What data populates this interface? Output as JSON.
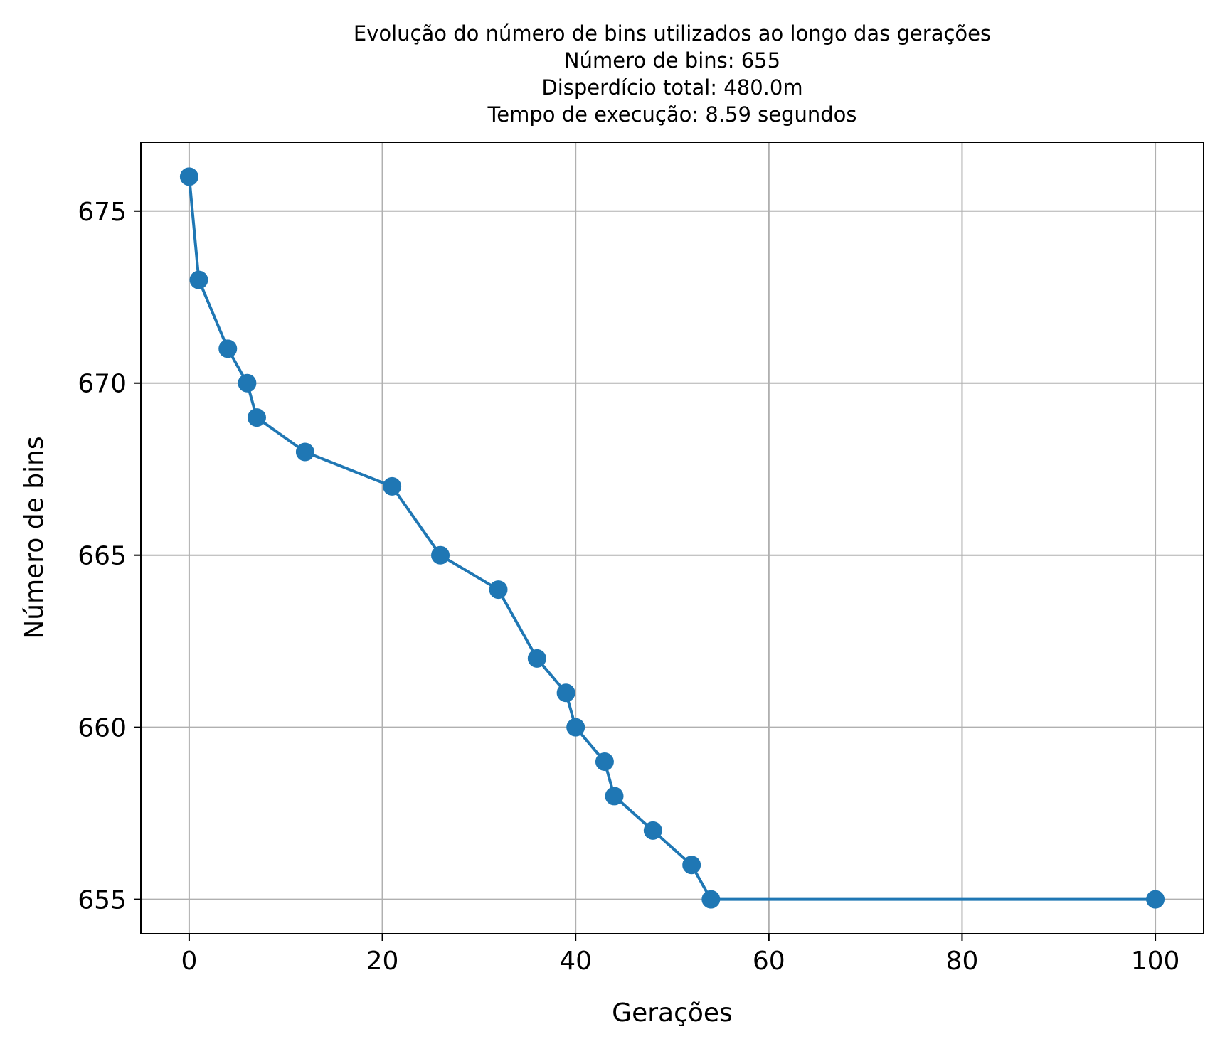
{
  "chart_data": {
    "type": "line",
    "title": [
      "Evolução do número de bins utilizados ao longo das gerações",
      "Número de bins: 655",
      "Disperdício total: 480.0m",
      "Tempo de execução: 8.59 segundos"
    ],
    "xlabel": "Gerações",
    "ylabel": "Número de bins",
    "xlim": [
      -5,
      105
    ],
    "ylim": [
      654,
      677
    ],
    "xticks": [
      0,
      20,
      40,
      60,
      80,
      100
    ],
    "yticks": [
      655,
      660,
      665,
      670,
      675
    ],
    "grid": true,
    "legend": false,
    "series": [
      {
        "color": "#1f77b4",
        "marker": "circle",
        "x": [
          0,
          1,
          4,
          6,
          7,
          12,
          21,
          26,
          32,
          36,
          39,
          40,
          43,
          44,
          48,
          52,
          54,
          100
        ],
        "y": [
          676,
          673,
          671,
          670,
          669,
          668,
          667,
          665,
          664,
          662,
          661,
          660,
          659,
          658,
          657,
          656,
          655,
          655
        ]
      }
    ]
  }
}
